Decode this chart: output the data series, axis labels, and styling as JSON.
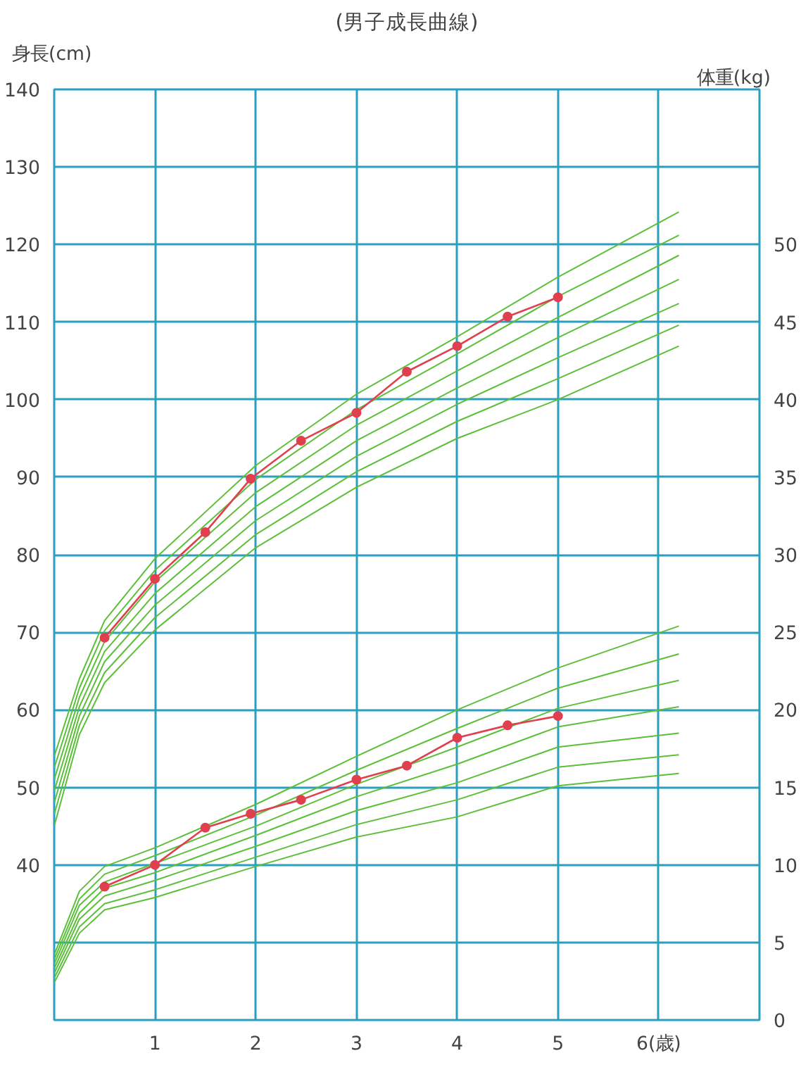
{
  "chart_data": {
    "type": "line",
    "title": "(男子成長曲線)",
    "ylabel": "身長(cm)",
    "y2label": "体重(kg)",
    "xlim": [
      0,
      7
    ],
    "xticks": [
      {
        "value": 0,
        "label": null
      },
      1,
      2,
      3,
      4,
      5,
      {
        "value": 6,
        "label": "6(歳)"
      },
      {
        "value": 7,
        "label": null
      }
    ],
    "ylim": [
      20,
      140
    ],
    "yticks": [
      {
        "value": 30,
        "label": null
      },
      40,
      50,
      60,
      70,
      80,
      90,
      100,
      110,
      120,
      130,
      140
    ],
    "y2lim": [
      0,
      60
    ],
    "y2ticks": [
      0,
      5,
      10,
      15,
      20,
      25,
      30,
      35,
      40,
      45,
      50
    ],
    "grid": true,
    "marker": "none",
    "line_style": "solid",
    "series": [
      {
        "color": "#5cbf3a",
        "axis": "y",
        "x": [
          0,
          0.25,
          0.5,
          1,
          2,
          3,
          4,
          5,
          6.2
        ],
        "values": [
          54,
          64,
          71.5,
          79.5,
          91.5,
          100.7,
          108.1,
          115.8,
          124.2
        ]
      },
      {
        "color": "#5cbf3a",
        "axis": "y",
        "x": [
          0,
          0.25,
          0.5,
          1,
          2,
          3,
          4,
          5,
          6.2
        ],
        "values": [
          52.5,
          62.8,
          70.2,
          78,
          89.7,
          98.7,
          105.9,
          113.3,
          121.2
        ]
      },
      {
        "color": "#5cbf3a",
        "axis": "y",
        "x": [
          0,
          0.25,
          0.5,
          1,
          2,
          3,
          4,
          5,
          6.2
        ],
        "values": [
          51,
          61.6,
          68.8,
          76.5,
          88,
          96.7,
          103.7,
          110.6,
          118.6
        ]
      },
      {
        "color": "#5cbf3a",
        "axis": "y",
        "x": [
          0,
          0.25,
          0.5,
          1,
          2,
          3,
          4,
          5,
          6.2
        ],
        "values": [
          49.5,
          60.4,
          67.5,
          75,
          86.2,
          94.7,
          101.5,
          108,
          115.5
        ]
      },
      {
        "color": "#5cbf3a",
        "axis": "y",
        "x": [
          0,
          0.25,
          0.5,
          1,
          2,
          3,
          4,
          5,
          6.2
        ],
        "values": [
          48,
          59.2,
          66.2,
          73.5,
          84.4,
          92.7,
          99.4,
          105.4,
          112.4
        ]
      },
      {
        "color": "#5cbf3a",
        "axis": "y",
        "x": [
          0,
          0.25,
          0.5,
          1,
          2,
          3,
          4,
          5,
          6.2
        ],
        "values": [
          46.5,
          58,
          64.8,
          71.9,
          82.6,
          90.7,
          97.2,
          102.7,
          109.6
        ]
      },
      {
        "color": "#5cbf3a",
        "axis": "y",
        "x": [
          0,
          0.25,
          0.5,
          1,
          2,
          3,
          4,
          5,
          6.2
        ],
        "values": [
          45,
          56.8,
          63.5,
          70.3,
          80.9,
          88.7,
          95,
          100,
          106.9
        ]
      },
      {
        "color": "#5cbf3a",
        "axis": "y2",
        "x": [
          0,
          0.25,
          0.5,
          1,
          2,
          3,
          4,
          5,
          6.2
        ],
        "values": [
          4.2,
          8.3,
          9.9,
          11.1,
          13.9,
          17,
          20,
          22.7,
          25.4
        ]
      },
      {
        "color": "#5cbf3a",
        "axis": "y2",
        "x": [
          0,
          0.25,
          0.5,
          1,
          2,
          3,
          4,
          5,
          6.2
        ],
        "values": [
          3.9,
          7.8,
          9.4,
          10.6,
          13.2,
          16.1,
          18.8,
          21.4,
          23.6
        ]
      },
      {
        "color": "#5cbf3a",
        "axis": "y2",
        "x": [
          0,
          0.25,
          0.5,
          1,
          2,
          3,
          4,
          5,
          6.2
        ],
        "values": [
          3.6,
          7.4,
          8.9,
          10.1,
          12.5,
          15.2,
          17.6,
          20.1,
          21.9
        ]
      },
      {
        "color": "#5cbf3a",
        "axis": "y2",
        "x": [
          0,
          0.25,
          0.5,
          1,
          2,
          3,
          4,
          5,
          6.2
        ],
        "values": [
          3.3,
          6.9,
          8.5,
          9.5,
          11.9,
          14.4,
          16.5,
          18.9,
          20.2
        ]
      },
      {
        "color": "#5cbf3a",
        "axis": "y2",
        "x": [
          0,
          0.25,
          0.5,
          1,
          2,
          3,
          4,
          5,
          6.2
        ],
        "values": [
          3,
          6.5,
          8,
          9,
          11.2,
          13.5,
          15.3,
          17.6,
          18.5
        ]
      },
      {
        "color": "#5cbf3a",
        "axis": "y2",
        "x": [
          0,
          0.25,
          0.5,
          1,
          2,
          3,
          4,
          5,
          6.2
        ],
        "values": [
          2.7,
          6,
          7.5,
          8.4,
          10.5,
          12.6,
          14.2,
          16.3,
          17.1
        ]
      },
      {
        "color": "#5cbf3a",
        "axis": "y2",
        "x": [
          0,
          0.25,
          0.5,
          1,
          2,
          3,
          4,
          5,
          6.2
        ],
        "values": [
          2.4,
          5.6,
          7.1,
          7.9,
          9.9,
          11.8,
          13.1,
          15.1,
          15.9
        ]
      },
      {
        "color": "#e0404e",
        "axis": "y",
        "marker": "circle",
        "x": [
          0.5,
          1,
          1.5,
          1.95,
          2.45,
          3,
          3.5,
          4,
          4.5,
          5
        ],
        "values": [
          69.3,
          76.9,
          82.9,
          89.8,
          94.7,
          98.3,
          103.6,
          106.9,
          110.7,
          113.2
        ]
      },
      {
        "color": "#e0404e",
        "axis": "y2",
        "marker": "circle",
        "x": [
          0.5,
          1,
          1.5,
          1.95,
          2.45,
          3,
          3.5,
          4,
          4.5,
          5
        ],
        "values": [
          8.6,
          10,
          12.4,
          13.3,
          14.2,
          15.5,
          16.4,
          18.2,
          19,
          19.6
        ]
      }
    ]
  }
}
